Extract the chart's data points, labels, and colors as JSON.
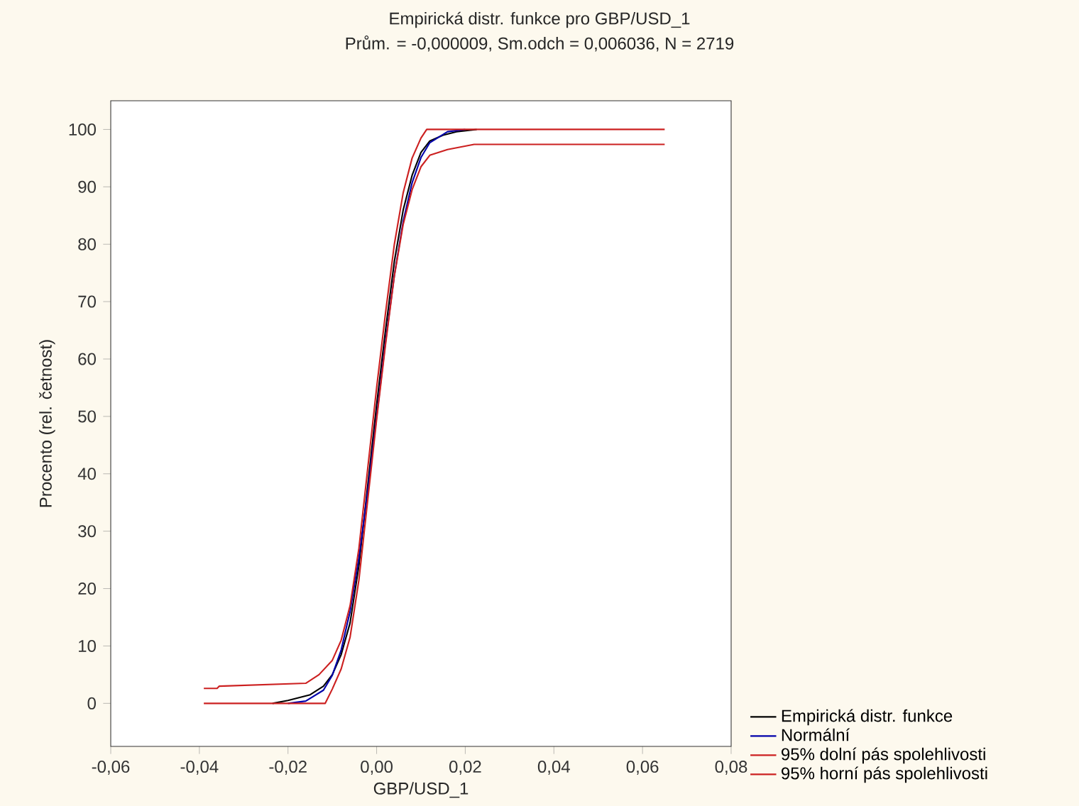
{
  "chart_data": {
    "type": "line",
    "title": "Empirická distr. funkce pro GBP/USD_1",
    "subtitle": "Prům. = -0,000009, Sm.odch = 0,006036, N = 2719",
    "xlabel": "GBP/USD_1",
    "ylabel": "Procento (rel. četnost)",
    "xlim": [
      -0.06,
      0.08
    ],
    "ylim": [
      -7.5,
      105
    ],
    "xticks": [
      {
        "value": -0.06,
        "label": "-0,06"
      },
      {
        "value": -0.04,
        "label": "-0,04"
      },
      {
        "value": -0.02,
        "label": "-0,02"
      },
      {
        "value": 0,
        "label": "0,00"
      },
      {
        "value": 0.02,
        "label": "0,02"
      },
      {
        "value": 0.04,
        "label": "0,04"
      },
      {
        "value": 0.06,
        "label": "0,06"
      },
      {
        "value": 0.08,
        "label": "0,08"
      }
    ],
    "yticks": [
      0,
      10,
      20,
      30,
      40,
      50,
      60,
      70,
      80,
      90,
      100
    ],
    "legend": "bottom right",
    "grid": false,
    "series": [
      {
        "name": "Empirická distr. funkce",
        "color": "#000000",
        "x": [
          -0.0235,
          -0.02,
          -0.015,
          -0.012,
          -0.01,
          -0.008,
          -0.006,
          -0.004,
          -0.002,
          0,
          0.002,
          0.004,
          0.006,
          0.008,
          0.01,
          0.012,
          0.015,
          0.018,
          0.0226
        ],
        "values": [
          0,
          0.5,
          1.5,
          3,
          5,
          8.5,
          14,
          24,
          38,
          52,
          65,
          77,
          86,
          92,
          96,
          98,
          99,
          99.6,
          100
        ]
      },
      {
        "name": "Normální",
        "color": "#0000aa",
        "x": [
          -0.02,
          -0.016,
          -0.012,
          -0.01,
          -0.008,
          -0.006,
          -0.004,
          -0.002,
          0,
          0.002,
          0.004,
          0.006,
          0.008,
          0.01,
          0.012,
          0.016,
          0.02
        ],
        "values": [
          0,
          0.4,
          2.3,
          4.9,
          9.3,
          16,
          25.4,
          37,
          50,
          63,
          74.6,
          84,
          90.7,
          95.1,
          97.7,
          99.6,
          100
        ]
      },
      {
        "name": "95% dolní pás spolehlivosti",
        "color": "#cc2020",
        "x": [
          -0.039,
          -0.0116,
          -0.01,
          -0.008,
          -0.006,
          -0.004,
          -0.002,
          0,
          0.002,
          0.004,
          0.006,
          0.008,
          0.01,
          0.012,
          0.016,
          0.022,
          0.065
        ],
        "values": [
          0,
          0,
          2.5,
          6,
          11.5,
          21.5,
          35.5,
          49.5,
          62.5,
          74.5,
          83.5,
          89.5,
          93.5,
          95.5,
          96.5,
          97.4,
          97.4
        ]
      },
      {
        "name": "95% horní pás spolehlivosti",
        "color": "#cc2020",
        "x": [
          -0.039,
          -0.036,
          -0.0355,
          -0.016,
          -0.013,
          -0.01,
          -0.008,
          -0.006,
          -0.004,
          -0.002,
          0,
          0.002,
          0.004,
          0.006,
          0.008,
          0.01,
          0.0113,
          0.065
        ],
        "values": [
          2.6,
          2.6,
          3,
          3.5,
          5,
          7.5,
          11,
          17,
          27,
          41,
          55,
          68,
          80,
          89,
          95,
          98.5,
          100,
          100
        ]
      }
    ]
  }
}
